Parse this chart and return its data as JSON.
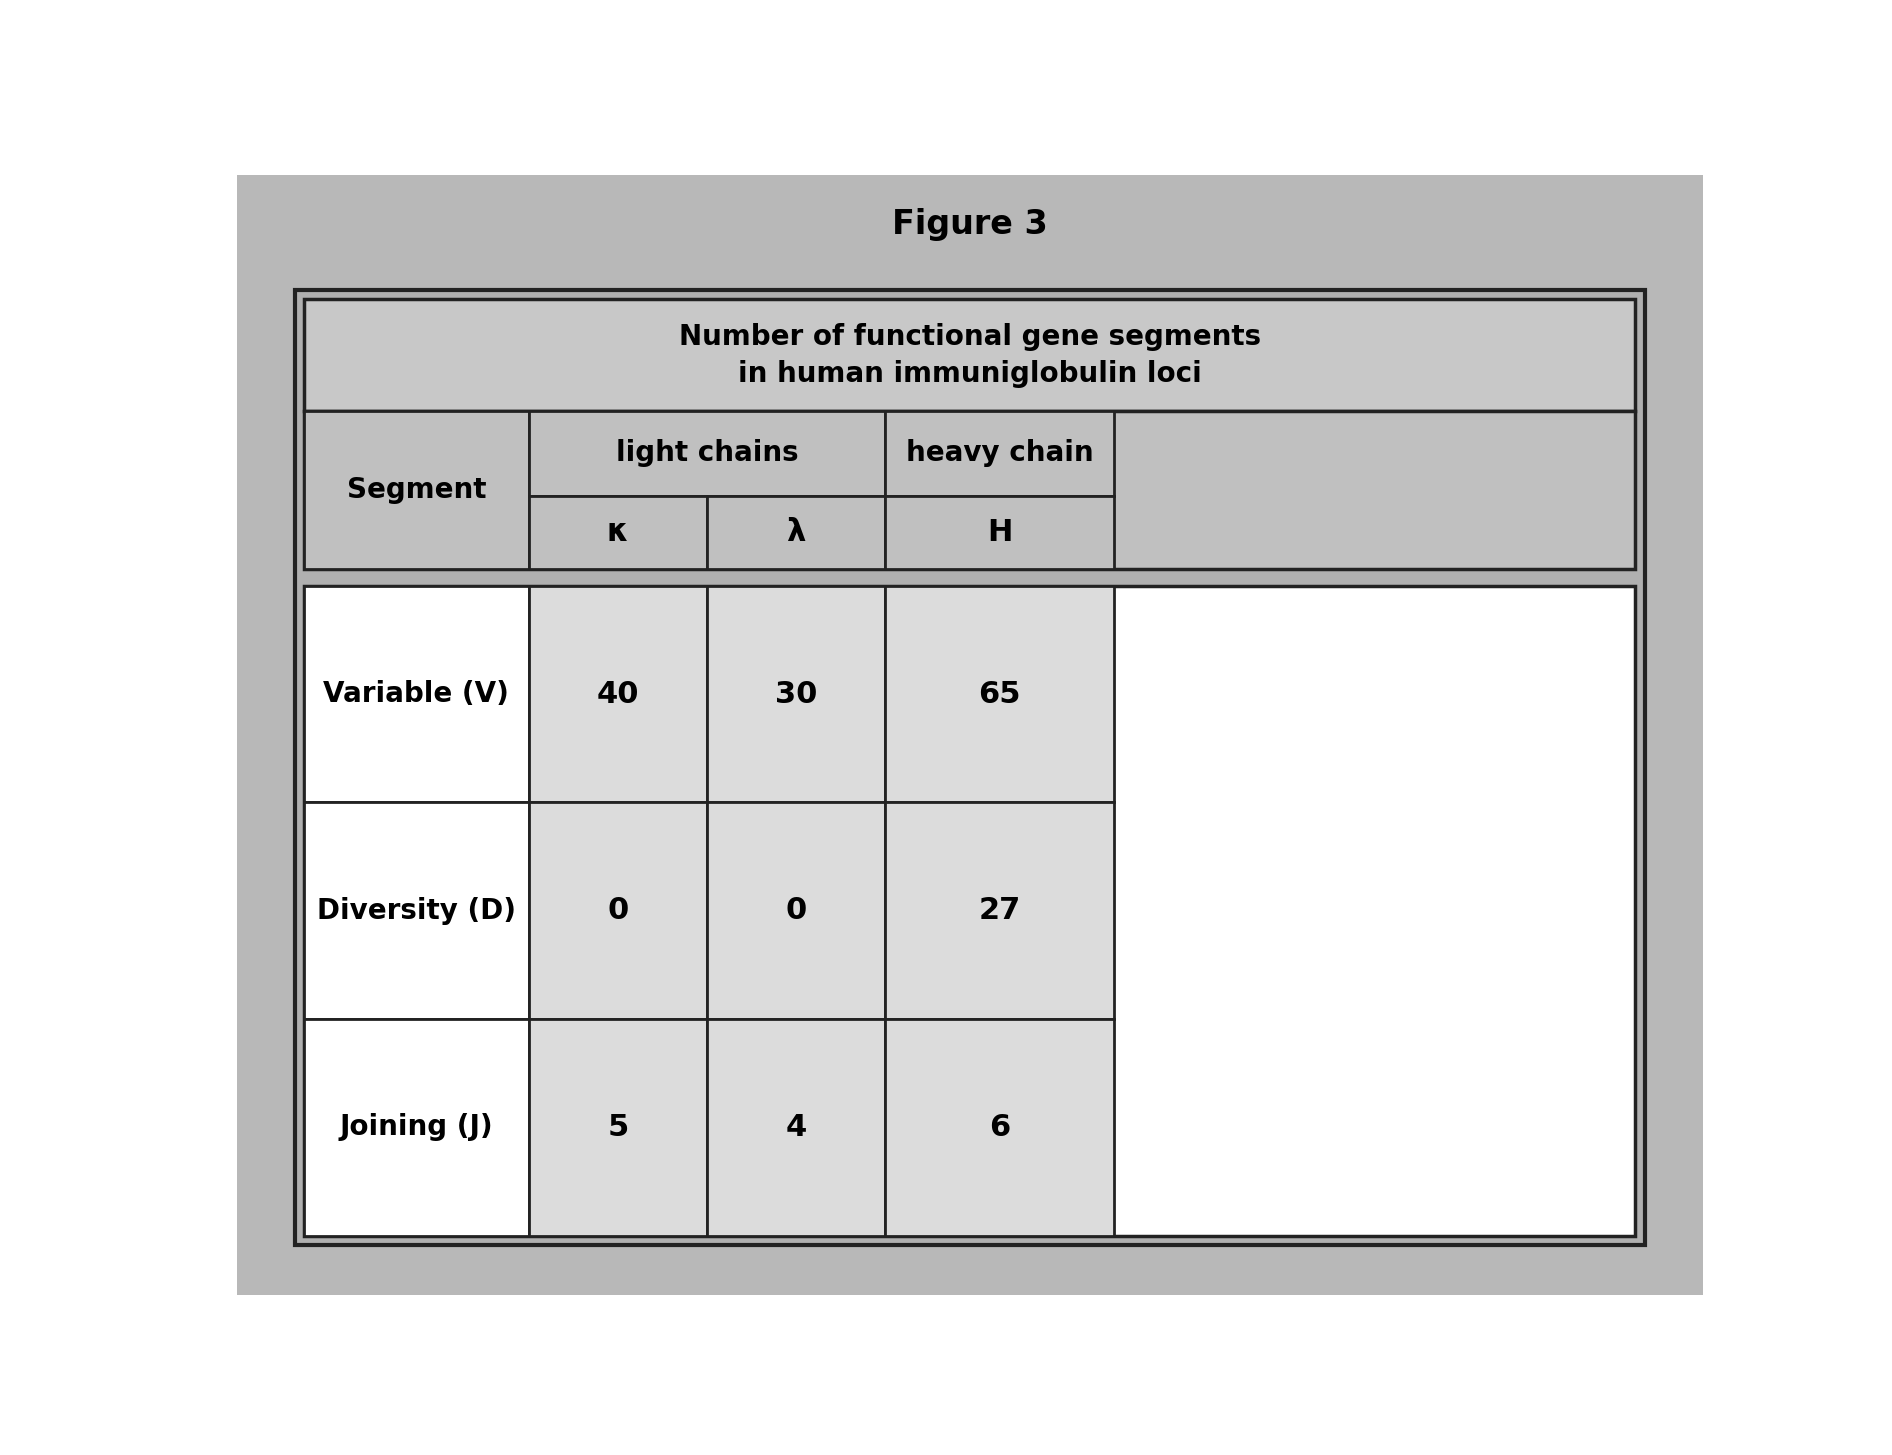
{
  "figure_title": "Figure 3",
  "table_title_line1": "Number of functional gene segments",
  "table_title_line2": "in human immuniglobulin loci",
  "data_rows": [
    [
      "Variable (V)",
      "40",
      "30",
      "65"
    ],
    [
      "Diversity (D)",
      "0",
      "0",
      "27"
    ],
    [
      "Joining (J)",
      "5",
      "4",
      "6"
    ]
  ],
  "page_bg_color": "#b8b8b8",
  "outer_bg_color": "#b0b0b0",
  "title_cell_color": "#c8c8c8",
  "header_cell_color": "#c0c0c0",
  "data_label_cell_color": "#ffffff",
  "data_value_cell_color": "#dcdcdc",
  "border_color": "#222222",
  "title_fontsize": 20,
  "header_fontsize": 20,
  "data_label_fontsize": 20,
  "data_value_fontsize": 22,
  "figure_title_fontsize": 24
}
